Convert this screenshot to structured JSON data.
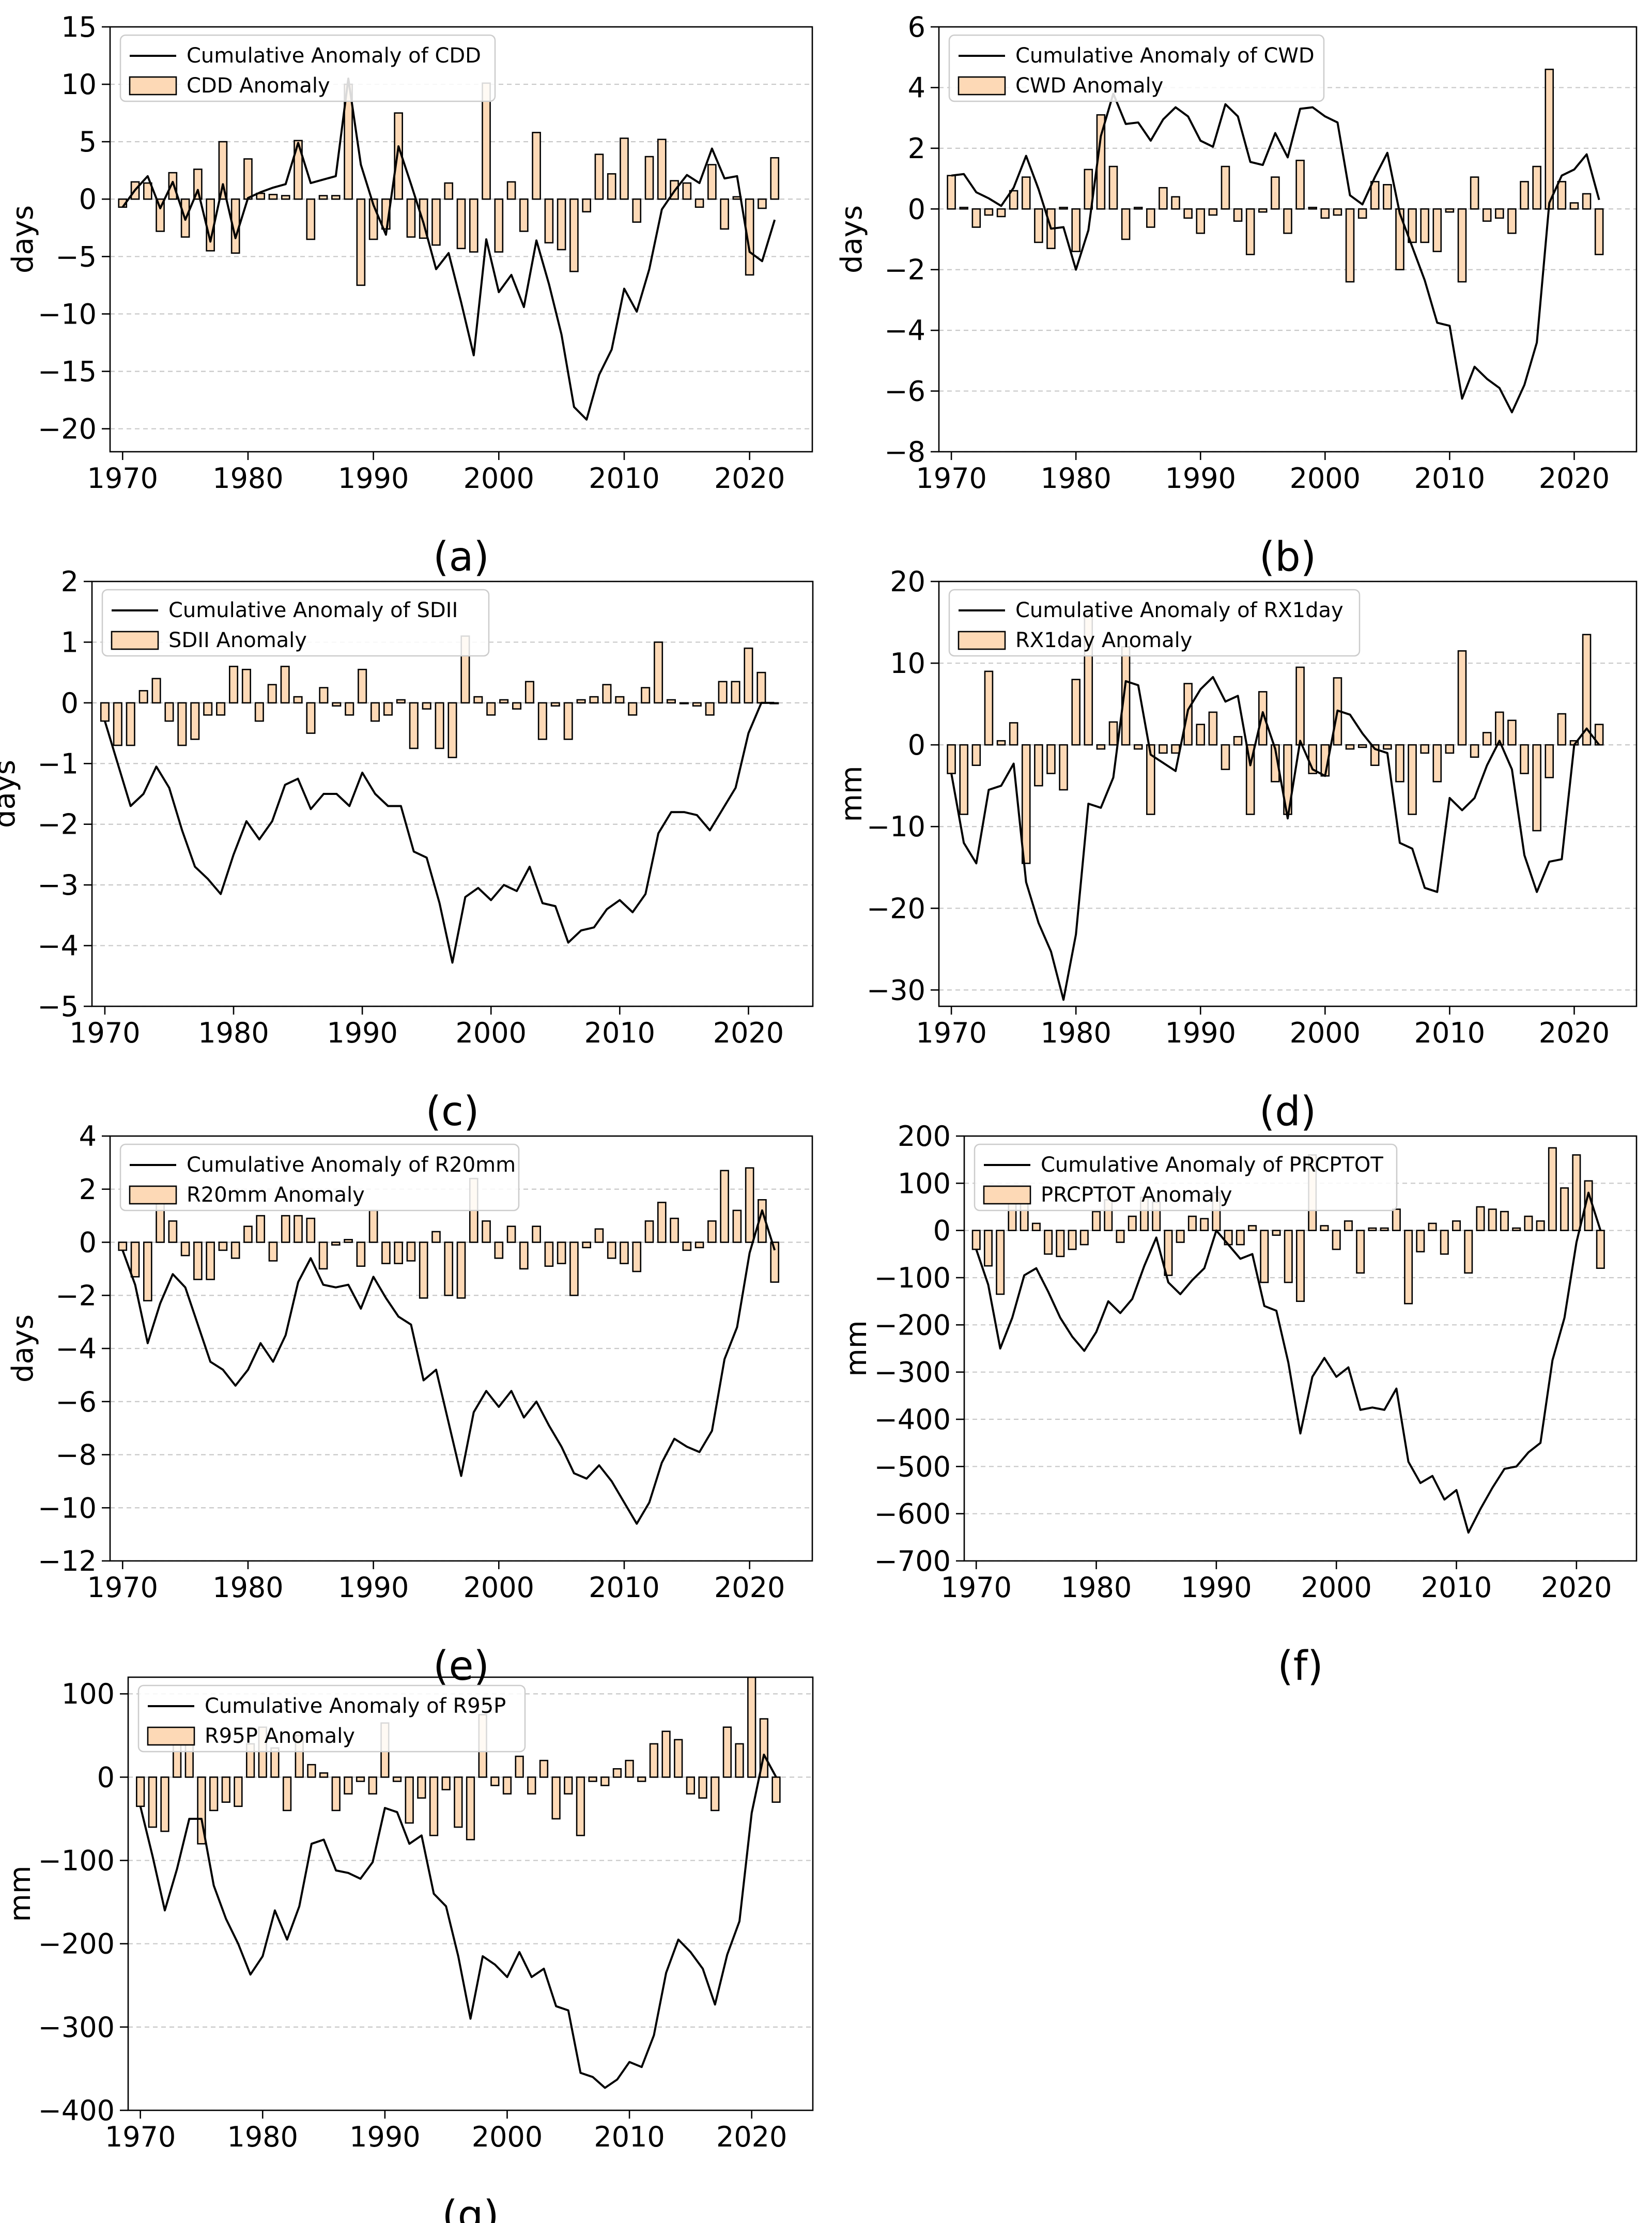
{
  "x_years_start": 1970,
  "colors": {
    "bar_fill": "#fdd9b6",
    "bar_edge": "#000000",
    "line": "#000000",
    "grid": "#c8c8c8"
  },
  "chart_data": [
    {
      "type": "bar+line",
      "panel_label": "(a)",
      "ylabel": "days",
      "ylim": [
        -22,
        15
      ],
      "yticks": [
        15,
        10,
        5,
        0,
        -5,
        -10,
        -15,
        -20
      ],
      "ytick_labels": [
        "15",
        "10",
        "5",
        "0",
        "−5",
        "−10",
        "−15",
        "−20"
      ],
      "xticks": [
        1970,
        1980,
        1990,
        2000,
        2010,
        2020
      ],
      "xlim": [
        1969,
        2025
      ],
      "legend": {
        "line_label": "Cumulative Anomaly of CDD",
        "bar_label": "CDD Anomaly"
      },
      "series": [
        {
          "name": "CDD Anomaly",
          "kind": "bar",
          "values": [
            -0.7,
            1.5,
            1.4,
            -2.8,
            2.3,
            -3.3,
            2.6,
            -4.5,
            5.0,
            -4.7,
            3.5,
            0.5,
            0.4,
            0.3,
            5.1,
            -3.5,
            0.3,
            0.3,
            10.0,
            -7.5,
            -3.5,
            -2.6,
            7.5,
            -3.3,
            -3.4,
            -4.0,
            1.4,
            -4.3,
            -4.6,
            10.1,
            -4.6,
            1.5,
            -2.8,
            5.8,
            -3.8,
            -4.4,
            -6.3,
            -1.1,
            3.9,
            2.2,
            5.3,
            -2.0,
            3.7,
            5.2,
            1.6,
            1.4,
            -0.7,
            3.0,
            -2.6,
            0.2,
            -6.6,
            -0.8,
            3.6
          ]
        },
        {
          "name": "Cumulative Anomaly of CDD",
          "kind": "line",
          "values": [
            -0.7,
            0.8,
            2.0,
            -0.8,
            1.5,
            -1.8,
            0.8,
            -3.7,
            1.3,
            -3.4,
            0.1,
            0.6,
            1.0,
            1.3,
            4.9,
            1.4,
            1.7,
            2.0,
            10.5,
            3.0,
            -0.5,
            -3.1,
            4.6,
            1.3,
            -2.1,
            -6.1,
            -4.7,
            -9.0,
            -13.6,
            -3.5,
            -8.1,
            -6.6,
            -9.4,
            -3.6,
            -7.4,
            -11.8,
            -18.1,
            -19.2,
            -15.3,
            -13.1,
            -7.8,
            -9.8,
            -6.1,
            -0.9,
            0.7,
            2.1,
            1.4,
            4.4,
            1.8,
            2.0,
            -4.6,
            -5.4,
            -1.8
          ]
        }
      ]
    },
    {
      "type": "bar+line",
      "panel_label": "(b)",
      "ylabel": "days",
      "ylim": [
        -8,
        6
      ],
      "yticks": [
        6,
        4,
        2,
        0,
        -2,
        -4,
        -6,
        -8
      ],
      "ytick_labels": [
        "6",
        "4",
        "2",
        "0",
        "−2",
        "−4",
        "−6",
        "−8"
      ],
      "xticks": [
        1970,
        1980,
        1990,
        2000,
        2010,
        2020
      ],
      "xlim": [
        1969,
        2025
      ],
      "legend": {
        "line_label": "Cumulative Anomaly of CWD",
        "bar_label": "CWD Anomaly"
      },
      "series": [
        {
          "name": "CWD Anomaly",
          "kind": "bar",
          "values": [
            1.1,
            0.05,
            -0.6,
            -0.2,
            -0.25,
            0.6,
            1.05,
            -1.1,
            -1.3,
            0.05,
            -1.4,
            1.3,
            3.1,
            1.4,
            -1.0,
            0.05,
            -0.6,
            0.7,
            0.4,
            -0.3,
            -0.8,
            -0.2,
            1.4,
            -0.4,
            -1.5,
            -0.1,
            1.05,
            -0.8,
            1.6,
            0.05,
            -0.3,
            -0.2,
            -2.4,
            -0.3,
            0.9,
            0.8,
            -2.0,
            -1.1,
            -1.1,
            -1.4,
            -0.1,
            -2.4,
            1.05,
            -0.4,
            -0.3,
            -0.8,
            0.9,
            1.4,
            4.6,
            0.9,
            0.2,
            0.5,
            -1.5
          ]
        },
        {
          "name": "Cumulative Anomaly of CWD",
          "kind": "line",
          "values": [
            1.1,
            1.15,
            0.55,
            0.35,
            0.1,
            0.7,
            1.75,
            0.65,
            -0.65,
            -0.6,
            -2.0,
            -0.7,
            2.4,
            3.8,
            2.8,
            2.85,
            2.25,
            2.95,
            3.35,
            3.05,
            2.25,
            2.05,
            3.45,
            3.05,
            1.55,
            1.45,
            2.5,
            1.7,
            3.3,
            3.35,
            3.05,
            2.85,
            0.45,
            0.15,
            1.05,
            1.85,
            -0.15,
            -1.25,
            -2.35,
            -3.75,
            -3.85,
            -6.25,
            -5.2,
            -5.6,
            -5.9,
            -6.7,
            -5.8,
            -4.4,
            0.2,
            1.1,
            1.3,
            1.8,
            0.3
          ]
        }
      ]
    },
    {
      "type": "bar+line",
      "panel_label": "(c)",
      "ylabel": "days",
      "ylim": [
        -5,
        2
      ],
      "yticks": [
        2,
        1,
        0,
        -1,
        -2,
        -3,
        -4,
        -5
      ],
      "ytick_labels": [
        "2",
        "1",
        "0",
        "−1",
        "−2",
        "−3",
        "−4",
        "−5"
      ],
      "xticks": [
        1970,
        1980,
        1990,
        2000,
        2010,
        2020
      ],
      "xlim": [
        1969,
        2025
      ],
      "legend": {
        "line_label": "Cumulative Anomaly of SDII",
        "bar_label": "SDII Anomaly"
      },
      "series": [
        {
          "name": "SDII Anomaly",
          "kind": "bar",
          "values": [
            -0.3,
            -0.7,
            -0.7,
            0.2,
            0.4,
            -0.3,
            -0.7,
            -0.6,
            -0.2,
            -0.2,
            0.6,
            0.55,
            -0.3,
            0.3,
            0.6,
            0.1,
            -0.5,
            0.25,
            -0.05,
            -0.2,
            0.55,
            -0.3,
            -0.2,
            0.05,
            -0.75,
            -0.1,
            -0.75,
            -0.9,
            1.1,
            0.1,
            -0.2,
            0.05,
            -0.1,
            0.35,
            -0.6,
            -0.05,
            -0.6,
            0.05,
            0.1,
            0.3,
            0.1,
            -0.2,
            0.25,
            1.0,
            0.05,
            0.0,
            -0.05,
            -0.2,
            0.35,
            0.35,
            0.9,
            0.5,
            0.0
          ]
        },
        {
          "name": "Cumulative Anomaly of SDII",
          "kind": "line",
          "values": [
            -0.3,
            -1.0,
            -1.7,
            -1.5,
            -1.05,
            -1.4,
            -2.1,
            -2.7,
            -2.9,
            -3.15,
            -2.5,
            -1.95,
            -2.25,
            -1.95,
            -1.35,
            -1.25,
            -1.75,
            -1.5,
            -1.5,
            -1.7,
            -1.15,
            -1.5,
            -1.7,
            -1.7,
            -2.45,
            -2.55,
            -3.3,
            -4.28,
            -3.2,
            -3.05,
            -3.25,
            -3.0,
            -3.1,
            -2.7,
            -3.3,
            -3.35,
            -3.95,
            -3.75,
            -3.7,
            -3.4,
            -3.25,
            -3.45,
            -3.15,
            -2.15,
            -1.8,
            -1.8,
            -1.85,
            -2.1,
            -1.75,
            -1.4,
            -0.5,
            0.0,
            0.0
          ]
        }
      ]
    },
    {
      "type": "bar+line",
      "panel_label": "(d)",
      "ylabel": "mm",
      "ylim": [
        -32,
        20
      ],
      "yticks": [
        20,
        10,
        0,
        -10,
        -20,
        -30
      ],
      "ytick_labels": [
        "20",
        "10",
        "0",
        "−10",
        "−20",
        "−30"
      ],
      "xticks": [
        1970,
        1980,
        1990,
        2000,
        2010,
        2020
      ],
      "xlim": [
        1969,
        2025
      ],
      "legend": {
        "line_label": "Cumulative Anomaly of RX1day",
        "bar_label": "RX1day Anomaly"
      },
      "series": [
        {
          "name": "RX1day Anomaly",
          "kind": "bar",
          "values": [
            -3.5,
            -8.5,
            -2.5,
            9.0,
            0.5,
            2.7,
            -14.5,
            -5.0,
            -3.5,
            -5.5,
            8.0,
            16.0,
            -0.5,
            2.8,
            12.0,
            -0.5,
            -8.5,
            -1.0,
            -1.0,
            7.5,
            2.5,
            4.0,
            -3.0,
            1.0,
            -8.5,
            6.5,
            -4.5,
            -8.5,
            9.5,
            -3.5,
            -3.8,
            8.2,
            -0.5,
            -0.3,
            -2.5,
            -0.5,
            -4.5,
            -8.5,
            -1.0,
            -4.5,
            -1.0,
            11.5,
            -1.5,
            1.5,
            4.0,
            3.0,
            -3.5,
            -10.5,
            -4.0,
            3.8,
            0.5,
            13.5,
            2.5
          ]
        },
        {
          "name": "Cumulative Anomaly of RX1day",
          "kind": "line",
          "values": [
            -3.5,
            -12.0,
            -14.5,
            -5.5,
            -5.0,
            -2.3,
            -16.8,
            -21.8,
            -25.3,
            -31.2,
            -23.2,
            -7.2,
            -7.7,
            -4.0,
            7.8,
            7.3,
            -1.2,
            -2.2,
            -3.2,
            4.3,
            6.8,
            8.3,
            5.3,
            6.0,
            -2.5,
            4.0,
            -0.5,
            -9.0,
            0.5,
            -3.0,
            -3.8,
            4.2,
            3.7,
            1.4,
            -0.5,
            -1.0,
            -12.0,
            -12.7,
            -17.5,
            -18.0,
            -6.5,
            -8.0,
            -6.5,
            -2.5,
            0.5,
            -3.0,
            -13.5,
            -18.0,
            -14.3,
            -14.0,
            0.0,
            2.0,
            0.0
          ]
        }
      ]
    },
    {
      "type": "bar+line",
      "panel_label": "(e)",
      "ylabel": "days",
      "ylim": [
        -12,
        4
      ],
      "yticks": [
        4,
        2,
        0,
        -2,
        -4,
        -6,
        -8,
        -10,
        -12
      ],
      "ytick_labels": [
        "4",
        "2",
        "0",
        "−2",
        "−4",
        "−6",
        "−8",
        "−10",
        "−12"
      ],
      "xticks": [
        1970,
        1980,
        1990,
        2000,
        2010,
        2020
      ],
      "xlim": [
        1969,
        2025
      ],
      "legend": {
        "line_label": "Cumulative Anomaly of R20mm",
        "bar_label": "R20mm Anomaly"
      },
      "series": [
        {
          "name": "R20mm Anomaly",
          "kind": "bar",
          "values": [
            -0.3,
            -1.3,
            -2.2,
            1.5,
            0.8,
            -0.5,
            -1.4,
            -1.4,
            -0.3,
            -0.6,
            0.6,
            1.0,
            -0.7,
            1.0,
            1.0,
            0.9,
            -1.0,
            -0.1,
            0.1,
            -0.9,
            1.2,
            -0.8,
            -0.8,
            -0.7,
            -2.1,
            0.4,
            -2.0,
            -2.1,
            2.4,
            0.8,
            -0.6,
            0.6,
            -1.0,
            0.6,
            -0.9,
            -0.8,
            -2.0,
            -0.2,
            0.5,
            -0.6,
            -0.8,
            -1.1,
            0.8,
            1.5,
            0.9,
            -0.3,
            -0.2,
            0.8,
            2.7,
            1.2,
            2.8,
            1.6,
            -1.5
          ]
        },
        {
          "name": "Cumulative Anomaly of R20mm",
          "kind": "line",
          "values": [
            -0.3,
            -1.6,
            -3.8,
            -2.3,
            -1.2,
            -1.7,
            -3.1,
            -4.5,
            -4.8,
            -5.4,
            -4.8,
            -3.8,
            -4.5,
            -3.5,
            -1.5,
            -0.6,
            -1.6,
            -1.7,
            -1.6,
            -2.5,
            -1.3,
            -2.1,
            -2.8,
            -3.1,
            -5.2,
            -4.8,
            -6.8,
            -8.8,
            -6.4,
            -5.6,
            -6.2,
            -5.6,
            -6.6,
            -6.0,
            -6.9,
            -7.7,
            -8.7,
            -8.9,
            -8.4,
            -9.0,
            -9.8,
            -10.6,
            -9.8,
            -8.3,
            -7.4,
            -7.7,
            -7.9,
            -7.1,
            -4.4,
            -3.2,
            -0.4,
            1.2,
            -0.3
          ]
        }
      ]
    },
    {
      "type": "bar+line",
      "panel_label": "(f)",
      "ylabel": "mm",
      "ylim": [
        -700,
        200
      ],
      "yticks": [
        200,
        100,
        0,
        -100,
        -200,
        -300,
        -400,
        -500,
        -600,
        -700
      ],
      "ytick_labels": [
        "200",
        "100",
        "0",
        "−100",
        "−200",
        "−300",
        "−400",
        "−500",
        "−600",
        "−700"
      ],
      "xticks": [
        1970,
        1980,
        1990,
        2000,
        2010,
        2020
      ],
      "xlim": [
        1969,
        2025
      ],
      "legend": {
        "line_label": "Cumulative Anomaly of PRCPTOT",
        "bar_label": "PRCPTOT Anomaly"
      },
      "series": [
        {
          "name": "PRCPTOT Anomaly",
          "kind": "bar",
          "values": [
            -40,
            -75,
            -135,
            65,
            90,
            15,
            -50,
            -55,
            -40,
            -30,
            40,
            65,
            -25,
            30,
            70,
            60,
            -95,
            -25,
            30,
            25,
            80,
            -30,
            -30,
            10,
            -110,
            -10,
            -110,
            -150,
            160,
            10,
            -40,
            20,
            -90,
            5,
            5,
            45,
            -155,
            -45,
            15,
            -50,
            20,
            -90,
            50,
            45,
            40,
            5,
            30,
            20,
            175,
            90,
            160,
            105,
            -80
          ]
        },
        {
          "name": "Cumulative Anomaly of PRCPTOT",
          "kind": "line",
          "values": [
            -40,
            -115,
            -250,
            -185,
            -95,
            -80,
            -130,
            -185,
            -225,
            -255,
            -215,
            -150,
            -175,
            -145,
            -75,
            -15,
            -110,
            -135,
            -105,
            -80,
            0,
            -30,
            -60,
            -50,
            -160,
            -170,
            -280,
            -430,
            -310,
            -270,
            -310,
            -290,
            -380,
            -375,
            -380,
            -335,
            -490,
            -535,
            -520,
            -570,
            -550,
            -640,
            -590,
            -545,
            -505,
            -500,
            -470,
            -450,
            -275,
            -185,
            -25,
            80,
            0
          ]
        }
      ]
    },
    {
      "type": "bar+line",
      "panel_label": "(g)",
      "ylabel": "mm",
      "ylim": [
        -400,
        120
      ],
      "yticks": [
        100,
        0,
        -100,
        -200,
        -300,
        -400
      ],
      "ytick_labels": [
        "100",
        "0",
        "−100",
        "−200",
        "−300",
        "−400"
      ],
      "xticks": [
        1970,
        1980,
        1990,
        2000,
        2010,
        2020
      ],
      "xlim": [
        1969,
        2025
      ],
      "legend": {
        "line_label": "Cumulative Anomaly of R95P",
        "bar_label": "R95P Anomaly"
      },
      "series": [
        {
          "name": "R95P Anomaly",
          "kind": "bar",
          "values": [
            -35,
            -60,
            -65,
            55,
            40,
            -80,
            -40,
            -30,
            -35,
            40,
            60,
            35,
            -40,
            50,
            15,
            5,
            -40,
            -20,
            -5,
            -20,
            65,
            -5,
            -55,
            -25,
            -70,
            -15,
            -60,
            -75,
            75,
            -10,
            -20,
            25,
            -20,
            20,
            -50,
            -20,
            -70,
            -5,
            -10,
            10,
            20,
            -5,
            40,
            55,
            45,
            -20,
            -25,
            -40,
            60,
            40,
            120,
            70,
            -30
          ]
        },
        {
          "name": "Cumulative Anomaly of R95P",
          "kind": "line",
          "values": [
            -35,
            -95,
            -160,
            -110,
            -50,
            -50,
            -130,
            -170,
            -200,
            -237,
            -215,
            -160,
            -195,
            -155,
            -80,
            -75,
            -112,
            -115,
            -122,
            -102,
            -37,
            -42,
            -80,
            -70,
            -140,
            -155,
            -215,
            -290,
            -215,
            -225,
            -240,
            -210,
            -240,
            -230,
            -275,
            -280,
            -355,
            -360,
            -373,
            -363,
            -342,
            -348,
            -310,
            -235,
            -195,
            -210,
            -230,
            -273,
            -213,
            -173,
            -43,
            27,
            0
          ]
        }
      ]
    }
  ]
}
